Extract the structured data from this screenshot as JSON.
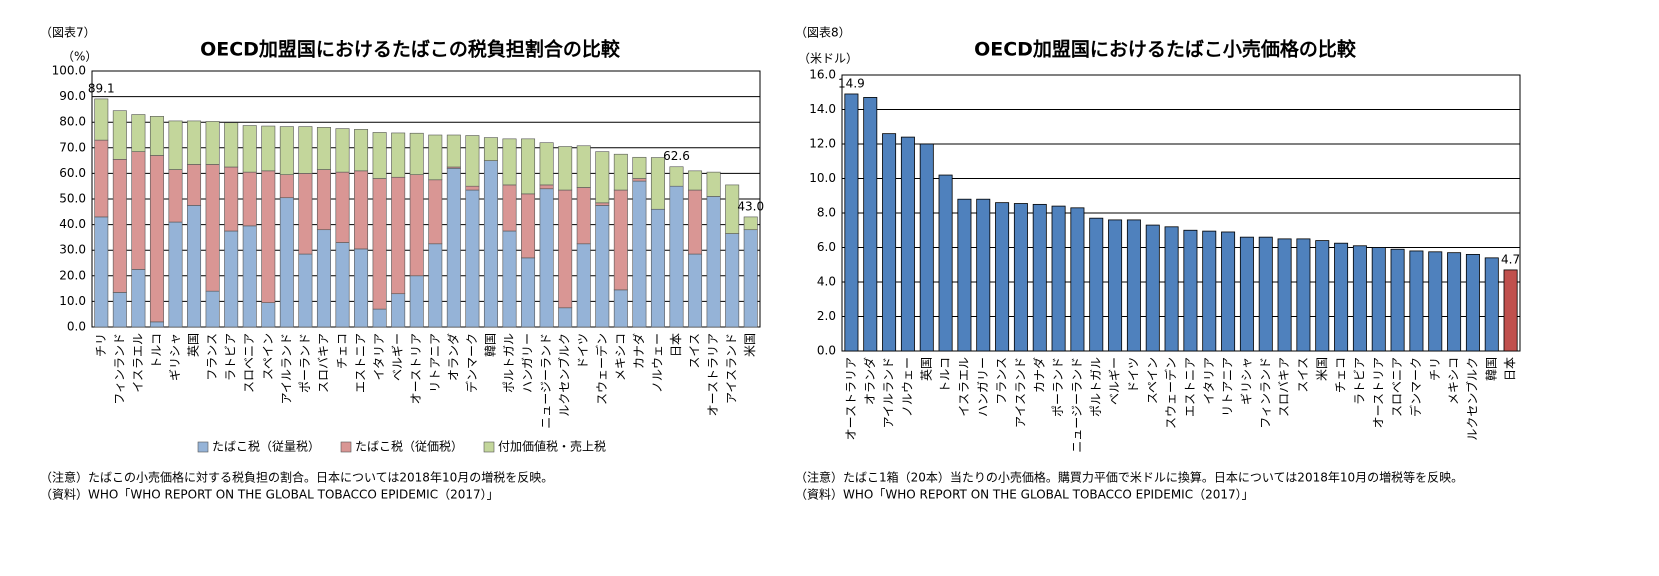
{
  "chart_data": [
    {
      "type": "stacked_bar",
      "figure_label": "（図表7）",
      "title": "OECD加盟国におけるたばこの税負担割合の比較",
      "unit": "（%）",
      "categories": [
        "チリ",
        "フィンランド",
        "イスラエル",
        "トルコ",
        "ギリシャ",
        "英国",
        "フランス",
        "ラトビア",
        "スロベニア",
        "スペイン",
        "アイルランド",
        "ポーランド",
        "スロバキア",
        "チェコ",
        "エストニア",
        "イタリア",
        "ベルギー",
        "オーストリア",
        "リトアニア",
        "オランダ",
        "デンマーク",
        "韓国",
        "ポルトガル",
        "ハンガリー",
        "ニュージーランド",
        "ルクセンブルク",
        "ドイツ",
        "スウェーデン",
        "メキシコ",
        "カナダ",
        "ノルウェー",
        "日本",
        "スイス",
        "オーストラリア",
        "アイスランド",
        "米国"
      ],
      "series": [
        {
          "name": "たばこ税（従量税）",
          "color": "#95b3d7",
          "values": [
            43,
            13.5,
            22.5,
            2,
            41,
            47.5,
            14,
            37.5,
            39.5,
            9.5,
            50.5,
            28.5,
            38,
            33,
            30.5,
            7,
            13,
            20,
            32.5,
            62,
            53.5,
            65,
            37.5,
            27,
            54,
            7.5,
            32.5,
            47.5,
            14.5,
            57,
            46,
            55,
            28.5,
            51,
            36.5,
            38
          ]
        },
        {
          "name": "たばこ税（従価税）",
          "color": "#d99694",
          "values": [
            30,
            52,
            46,
            65,
            20.5,
            16,
            49.5,
            25,
            21,
            51.5,
            9,
            31.5,
            23.5,
            27.5,
            30.5,
            51,
            45.5,
            39.5,
            25,
            0.5,
            1.5,
            0,
            18,
            25,
            1.5,
            46,
            22,
            1,
            39,
            1,
            0,
            0,
            25,
            0,
            0,
            0
          ]
        },
        {
          "name": "付加価値税・売上税",
          "color": "#c3d69b",
          "values": [
            16.1,
            19,
            14.5,
            15.3,
            19,
            17,
            16.8,
            17.3,
            18.2,
            17.5,
            18.8,
            18.3,
            16.5,
            17,
            16.2,
            18,
            17.3,
            16.2,
            17.5,
            12.5,
            19.8,
            9,
            18,
            21.5,
            16.5,
            17,
            16.3,
            20,
            14,
            8.3,
            20.2,
            7.6,
            7.5,
            9.5,
            19,
            5
          ]
        }
      ],
      "total_labels": [
        {
          "label": "89.1",
          "color": "#000000"
        },
        null,
        null,
        null,
        null,
        null,
        null,
        null,
        null,
        null,
        null,
        null,
        null,
        null,
        null,
        null,
        null,
        null,
        null,
        null,
        null,
        null,
        null,
        null,
        null,
        null,
        null,
        null,
        null,
        null,
        null,
        {
          "label": "62.6",
          "color": "#ff0000"
        },
        null,
        null,
        null,
        {
          "label": "43.0",
          "color": "#000000"
        }
      ],
      "ylim": [
        0,
        100
      ],
      "yticks": [
        {
          "value": 0,
          "label": "0.0"
        },
        {
          "value": 10,
          "label": "10.0"
        },
        {
          "value": 20,
          "label": "20.0"
        },
        {
          "value": 30,
          "label": "30.0"
        },
        {
          "value": 40,
          "label": "40.0"
        },
        {
          "value": 50,
          "label": "50.0"
        },
        {
          "value": 60,
          "label": "60.0"
        },
        {
          "value": 70,
          "label": "70.0"
        },
        {
          "value": 80,
          "label": "80.0"
        },
        {
          "value": 90,
          "label": "90.0"
        },
        {
          "value": 100,
          "label": "100.0"
        }
      ],
      "grid": true,
      "legend": "bottom",
      "notes": [
        "（注意）たばこの小売価格に対する税負担の割合。日本については2018年10月の増税を反映。",
        "（資料）WHO「WHO REPORT ON THE GLOBAL TOBACCO EPIDEMIC（2017）」"
      ]
    },
    {
      "type": "bar",
      "figure_label": "（図表8）",
      "title": "OECD加盟国におけるたばこ小売価格の比較",
      "unit": "（米ドル）",
      "categories": [
        "オーストラリア",
        "オランダ",
        "アイルランド",
        "ノルウェー",
        "英国",
        "トルコ",
        "イスラエル",
        "ハンガリー",
        "フランス",
        "アイスランド",
        "カナダ",
        "ポーランド",
        "ニュージーランド",
        "ポルトガル",
        "ベルギー",
        "ドイツ",
        "スペイン",
        "スウェーデン",
        "エストニア",
        "イタリア",
        "リトアニア",
        "ギリシャ",
        "フィンランド",
        "スロバキア",
        "スイス",
        "米国",
        "チェコ",
        "ラトビア",
        "オーストリア",
        "スロベニア",
        "デンマーク",
        "チリ",
        "メキシコ",
        "ルクセンブルク",
        "韓国",
        "日本"
      ],
      "values": [
        14.9,
        14.7,
        12.6,
        12.4,
        12.0,
        10.2,
        8.8,
        8.8,
        8.6,
        8.55,
        8.5,
        8.4,
        8.3,
        7.7,
        7.6,
        7.6,
        7.3,
        7.2,
        7.0,
        6.95,
        6.9,
        6.6,
        6.6,
        6.5,
        6.5,
        6.4,
        6.25,
        6.1,
        6.0,
        5.9,
        5.8,
        5.75,
        5.7,
        5.6,
        5.4,
        4.7
      ],
      "value_labels": [
        "14.9",
        null,
        null,
        null,
        null,
        null,
        null,
        null,
        null,
        null,
        null,
        null,
        null,
        null,
        null,
        null,
        null,
        null,
        null,
        null,
        null,
        null,
        null,
        null,
        null,
        null,
        null,
        null,
        null,
        null,
        null,
        null,
        null,
        null,
        null,
        "4.7"
      ],
      "value_label_colors": [
        "#000000",
        null,
        null,
        null,
        null,
        null,
        null,
        null,
        null,
        null,
        null,
        null,
        null,
        null,
        null,
        null,
        null,
        null,
        null,
        null,
        null,
        null,
        null,
        null,
        null,
        null,
        null,
        null,
        null,
        null,
        null,
        null,
        null,
        null,
        null,
        "#ff0000"
      ],
      "colors": [
        "#4f81bd",
        "#4f81bd",
        "#4f81bd",
        "#4f81bd",
        "#4f81bd",
        "#4f81bd",
        "#4f81bd",
        "#4f81bd",
        "#4f81bd",
        "#4f81bd",
        "#4f81bd",
        "#4f81bd",
        "#4f81bd",
        "#4f81bd",
        "#4f81bd",
        "#4f81bd",
        "#4f81bd",
        "#4f81bd",
        "#4f81bd",
        "#4f81bd",
        "#4f81bd",
        "#4f81bd",
        "#4f81bd",
        "#4f81bd",
        "#4f81bd",
        "#4f81bd",
        "#4f81bd",
        "#4f81bd",
        "#4f81bd",
        "#4f81bd",
        "#4f81bd",
        "#4f81bd",
        "#4f81bd",
        "#4f81bd",
        "#4f81bd",
        "#c0504d"
      ],
      "ylim": [
        0,
        16
      ],
      "yticks": [
        {
          "value": 0,
          "label": "0.0"
        },
        {
          "value": 2,
          "label": "2.0"
        },
        {
          "value": 4,
          "label": "4.0"
        },
        {
          "value": 6,
          "label": "6.0"
        },
        {
          "value": 8,
          "label": "8.0"
        },
        {
          "value": 10,
          "label": "10.0"
        },
        {
          "value": 12,
          "label": "12.0"
        },
        {
          "value": 14,
          "label": "14.0"
        },
        {
          "value": 16,
          "label": "16.0"
        }
      ],
      "grid": true,
      "notes": [
        "（注意）たばこ1箱（20本）当たりの小売価格。購買力平価で米ドルに換算。日本については2018年10月の増税等を反映。",
        "（資料）WHO「WHO REPORT ON THE GLOBAL TOBACCO EPIDEMIC（2017）」"
      ]
    }
  ]
}
